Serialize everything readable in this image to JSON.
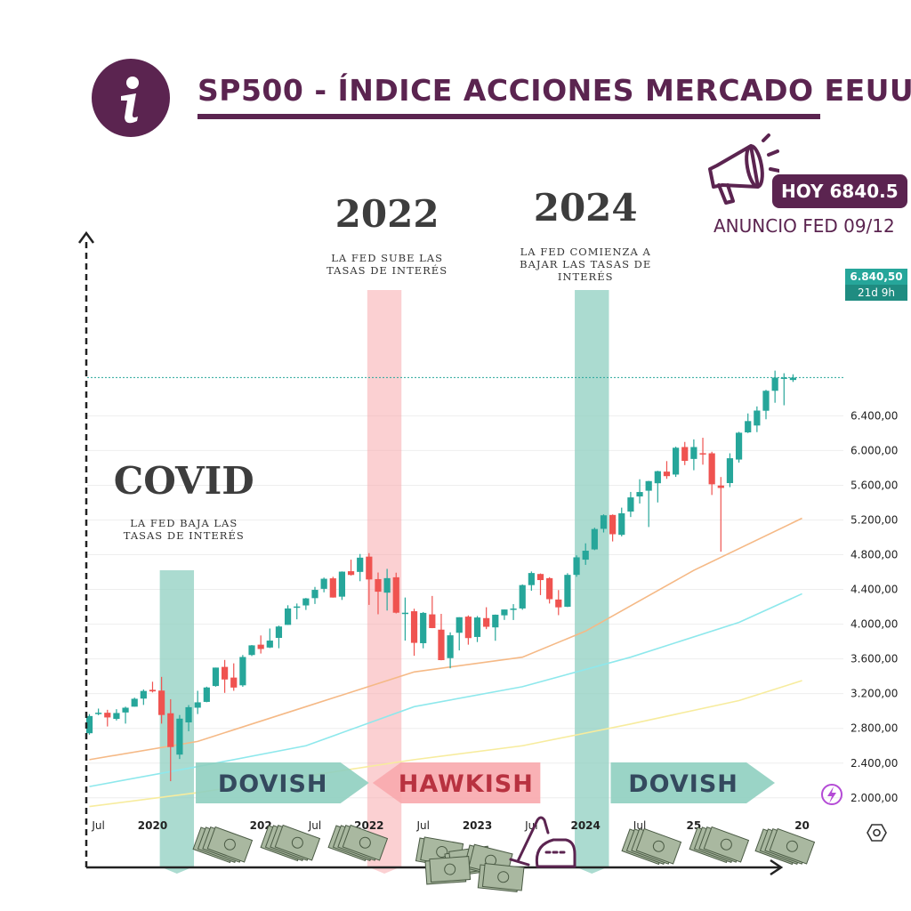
{
  "header": {
    "title": "SP500 - ÍNDICE ACCIONES MERCADO EEUU",
    "today_label": "HOY 6840.5",
    "fed_announcement": "ANUNCIO FED 09/12"
  },
  "price_badge": {
    "price": "6.840,50",
    "countdown": "21d 9h"
  },
  "colors": {
    "brand": "#5b2450",
    "up": "#26a69a",
    "down": "#ef5350",
    "dovish": "#8fcfc0",
    "hawkish": "#f8a9ad"
  },
  "icons": [
    "info-icon",
    "megaphone-icon",
    "lightning-icon",
    "settings-icon",
    "money-stack-icon",
    "vacuum-icon"
  ],
  "chart_data": {
    "type": "candlestick",
    "y_ticks": [
      {
        "value": 2000,
        "label": "2.000,00"
      },
      {
        "value": 2400,
        "label": "2.400,00"
      },
      {
        "value": 2800,
        "label": "2.800,00"
      },
      {
        "value": 3200,
        "label": "3.200,00"
      },
      {
        "value": 3600,
        "label": "3.600,00"
      },
      {
        "value": 4000,
        "label": "4.000,00"
      },
      {
        "value": 4400,
        "label": "4.400,00"
      },
      {
        "value": 4800,
        "label": "4.800,00"
      },
      {
        "value": 5200,
        "label": "5.200,00"
      },
      {
        "value": 5600,
        "label": "5.600,00"
      },
      {
        "value": 6000,
        "label": "6.000,00"
      },
      {
        "value": 6400,
        "label": "6.400,00"
      }
    ],
    "x_ticks": [
      {
        "month": "2019-07",
        "label": "Jul",
        "bold": false
      },
      {
        "month": "2020-01",
        "label": "2020",
        "bold": true
      },
      {
        "month": "2021-01",
        "label": "202",
        "bold": true
      },
      {
        "month": "2021-07",
        "label": "Jul",
        "bold": false
      },
      {
        "month": "2022-01",
        "label": "2022",
        "bold": true
      },
      {
        "month": "2022-07",
        "label": "Jul",
        "bold": false
      },
      {
        "month": "2023-01",
        "label": "2023",
        "bold": true
      },
      {
        "month": "2023-07",
        "label": "Jul",
        "bold": false
      },
      {
        "month": "2024-01",
        "label": "2024",
        "bold": true
      },
      {
        "month": "2024-07",
        "label": "Jul",
        "bold": false
      },
      {
        "month": "2025-01",
        "label": "25",
        "bold": true
      },
      {
        "month": "2026-01",
        "label": "20",
        "bold": true
      }
    ],
    "last_price": 6840.5,
    "candles": [
      {
        "month": "2019-06",
        "o": 2744,
        "h": 2964,
        "l": 2728,
        "c": 2942
      },
      {
        "month": "2019-07",
        "o": 2971,
        "h": 3028,
        "l": 2952,
        "c": 2980
      },
      {
        "month": "2019-08",
        "o": 2980,
        "h": 3014,
        "l": 2822,
        "c": 2926
      },
      {
        "month": "2019-09",
        "o": 2909,
        "h": 3021,
        "l": 2891,
        "c": 2977
      },
      {
        "month": "2019-10",
        "o": 2983,
        "h": 3050,
        "l": 2855,
        "c": 3038
      },
      {
        "month": "2019-11",
        "o": 3050,
        "h": 3154,
        "l": 3050,
        "c": 3141
      },
      {
        "month": "2019-12",
        "o": 3143,
        "h": 3248,
        "l": 3070,
        "c": 3231
      },
      {
        "month": "2020-01",
        "o": 3244,
        "h": 3337,
        "l": 3214,
        "c": 3226
      },
      {
        "month": "2020-02",
        "o": 3235,
        "h": 3393,
        "l": 2855,
        "c": 2954
      },
      {
        "month": "2020-03",
        "o": 2974,
        "h": 3136,
        "l": 2192,
        "c": 2585
      },
      {
        "month": "2020-04",
        "o": 2498,
        "h": 2954,
        "l": 2447,
        "c": 2912
      },
      {
        "month": "2020-05",
        "o": 2869,
        "h": 3068,
        "l": 2767,
        "c": 3044
      },
      {
        "month": "2020-06",
        "o": 3038,
        "h": 3233,
        "l": 2965,
        "c": 3100
      },
      {
        "month": "2020-07",
        "o": 3105,
        "h": 3280,
        "l": 3101,
        "c": 3271
      },
      {
        "month": "2020-08",
        "o": 3288,
        "h": 3500,
        "l": 3280,
        "c": 3500
      },
      {
        "month": "2020-09",
        "o": 3508,
        "h": 3588,
        "l": 3209,
        "c": 3363
      },
      {
        "month": "2020-10",
        "o": 3385,
        "h": 3549,
        "l": 3233,
        "c": 3270
      },
      {
        "month": "2020-11",
        "o": 3296,
        "h": 3645,
        "l": 3279,
        "c": 3622
      },
      {
        "month": "2020-12",
        "o": 3645,
        "h": 3760,
        "l": 3633,
        "c": 3756
      },
      {
        "month": "2021-01",
        "o": 3764,
        "h": 3870,
        "l": 3662,
        "c": 3714
      },
      {
        "month": "2021-02",
        "o": 3731,
        "h": 3950,
        "l": 3725,
        "c": 3811
      },
      {
        "month": "2021-03",
        "o": 3842,
        "h": 3983,
        "l": 3723,
        "c": 3973
      },
      {
        "month": "2021-04",
        "o": 3992,
        "h": 4218,
        "l": 3992,
        "c": 4181
      },
      {
        "month": "2021-05",
        "o": 4191,
        "h": 4238,
        "l": 4056,
        "c": 4204
      },
      {
        "month": "2021-06",
        "o": 4216,
        "h": 4302,
        "l": 4164,
        "c": 4297
      },
      {
        "month": "2021-07",
        "o": 4300,
        "h": 4429,
        "l": 4233,
        "c": 4395
      },
      {
        "month": "2021-08",
        "o": 4407,
        "h": 4537,
        "l": 4367,
        "c": 4523
      },
      {
        "month": "2021-09",
        "o": 4528,
        "h": 4546,
        "l": 4306,
        "c": 4307
      },
      {
        "month": "2021-10",
        "o": 4317,
        "h": 4608,
        "l": 4279,
        "c": 4605
      },
      {
        "month": "2021-11",
        "o": 4610,
        "h": 4743,
        "l": 4560,
        "c": 4567
      },
      {
        "month": "2021-12",
        "o": 4602,
        "h": 4808,
        "l": 4495,
        "c": 4766
      },
      {
        "month": "2022-01",
        "o": 4778,
        "h": 4818,
        "l": 4222,
        "c": 4515
      },
      {
        "month": "2022-02",
        "o": 4519,
        "h": 4595,
        "l": 4114,
        "c": 4374
      },
      {
        "month": "2022-03",
        "o": 4363,
        "h": 4637,
        "l": 4157,
        "c": 4530
      },
      {
        "month": "2022-04",
        "o": 4540,
        "h": 4593,
        "l": 4124,
        "c": 4132
      },
      {
        "month": "2022-05",
        "o": 4130,
        "h": 4307,
        "l": 3811,
        "c": 4132
      },
      {
        "month": "2022-06",
        "o": 4149,
        "h": 4178,
        "l": 3636,
        "c": 3785
      },
      {
        "month": "2022-07",
        "o": 3781,
        "h": 4140,
        "l": 3722,
        "c": 4130
      },
      {
        "month": "2022-08",
        "o": 4113,
        "h": 4325,
        "l": 3954,
        "c": 3955
      },
      {
        "month": "2022-09",
        "o": 3937,
        "h": 4119,
        "l": 3584,
        "c": 3586
      },
      {
        "month": "2022-10",
        "o": 3609,
        "h": 3906,
        "l": 3492,
        "c": 3872
      },
      {
        "month": "2022-11",
        "o": 3901,
        "h": 4080,
        "l": 3698,
        "c": 4080
      },
      {
        "month": "2022-12",
        "o": 4087,
        "h": 4101,
        "l": 3764,
        "c": 3840
      },
      {
        "month": "2023-01",
        "o": 3853,
        "h": 4094,
        "l": 3794,
        "c": 4077
      },
      {
        "month": "2023-02",
        "o": 4070,
        "h": 4195,
        "l": 3943,
        "c": 3970
      },
      {
        "month": "2023-03",
        "o": 3963,
        "h": 4111,
        "l": 3809,
        "c": 4109
      },
      {
        "month": "2023-04",
        "o": 4102,
        "h": 4170,
        "l": 4049,
        "c": 4169
      },
      {
        "month": "2023-05",
        "o": 4166,
        "h": 4231,
        "l": 4048,
        "c": 4180
      },
      {
        "month": "2023-06",
        "o": 4181,
        "h": 4458,
        "l": 4166,
        "c": 4450
      },
      {
        "month": "2023-07",
        "o": 4450,
        "h": 4607,
        "l": 4385,
        "c": 4589
      },
      {
        "month": "2023-08",
        "o": 4578,
        "h": 4584,
        "l": 4335,
        "c": 4508
      },
      {
        "month": "2023-09",
        "o": 4530,
        "h": 4541,
        "l": 4238,
        "c": 4288
      },
      {
        "month": "2023-10",
        "o": 4284,
        "h": 4393,
        "l": 4104,
        "c": 4194
      },
      {
        "month": "2023-11",
        "o": 4201,
        "h": 4587,
        "l": 4197,
        "c": 4568
      },
      {
        "month": "2023-12",
        "o": 4568,
        "h": 4793,
        "l": 4546,
        "c": 4770
      },
      {
        "month": "2024-01",
        "o": 4743,
        "h": 4931,
        "l": 4683,
        "c": 4846
      },
      {
        "month": "2024-02",
        "o": 4861,
        "h": 5111,
        "l": 4853,
        "c": 5096
      },
      {
        "month": "2024-03",
        "o": 5098,
        "h": 5265,
        "l": 5056,
        "c": 5254
      },
      {
        "month": "2024-04",
        "o": 5258,
        "h": 5264,
        "l": 4953,
        "c": 5036
      },
      {
        "month": "2024-05",
        "o": 5029,
        "h": 5342,
        "l": 5011,
        "c": 5277
      },
      {
        "month": "2024-06",
        "o": 5297,
        "h": 5523,
        "l": 5234,
        "c": 5460
      },
      {
        "month": "2024-07",
        "o": 5471,
        "h": 5669,
        "l": 5390,
        "c": 5522
      },
      {
        "month": "2024-08",
        "o": 5537,
        "h": 5651,
        "l": 5119,
        "c": 5648
      },
      {
        "month": "2024-09",
        "o": 5623,
        "h": 5767,
        "l": 5402,
        "c": 5762
      },
      {
        "month": "2024-10",
        "o": 5757,
        "h": 5878,
        "l": 5674,
        "c": 5705
      },
      {
        "month": "2024-11",
        "o": 5723,
        "h": 6044,
        "l": 5696,
        "c": 6032
      },
      {
        "month": "2024-12",
        "o": 6040,
        "h": 6099,
        "l": 5832,
        "c": 5881
      },
      {
        "month": "2025-01",
        "o": 5903,
        "h": 6128,
        "l": 5773,
        "c": 6040
      },
      {
        "month": "2025-02",
        "o": 5969,
        "h": 6147,
        "l": 5837,
        "c": 5954
      },
      {
        "month": "2025-03",
        "o": 5968,
        "h": 5986,
        "l": 5488,
        "c": 5611
      },
      {
        "month": "2025-04",
        "o": 5597,
        "h": 5695,
        "l": 4835,
        "c": 5569
      },
      {
        "month": "2025-05",
        "o": 5625,
        "h": 5968,
        "l": 5578,
        "c": 5911
      },
      {
        "month": "2025-06",
        "o": 5896,
        "h": 6215,
        "l": 5861,
        "c": 6205
      },
      {
        "month": "2025-07",
        "o": 6209,
        "h": 6427,
        "l": 6201,
        "c": 6339
      },
      {
        "month": "2025-08",
        "o": 6288,
        "h": 6508,
        "l": 6212,
        "c": 6460
      },
      {
        "month": "2025-09",
        "o": 6458,
        "h": 6699,
        "l": 6360,
        "c": 6688
      },
      {
        "month": "2025-10",
        "o": 6688,
        "h": 6920,
        "l": 6550,
        "c": 6840
      },
      {
        "month": "2025-11",
        "o": 6840,
        "h": 6890,
        "l": 6521,
        "c": 6840
      },
      {
        "month": "2025-12",
        "o": 6812,
        "h": 6878,
        "l": 6790,
        "c": 6840
      }
    ],
    "moving_averages": [
      {
        "color": "#f5b986",
        "points": [
          [
            "2019-06",
            2440
          ],
          [
            "2020-06",
            2650
          ],
          [
            "2021-06",
            3050
          ],
          [
            "2022-06",
            3450
          ],
          [
            "2023-06",
            3620
          ],
          [
            "2024-01",
            3920
          ],
          [
            "2025-01",
            4620
          ],
          [
            "2026-01",
            5220
          ]
        ]
      },
      {
        "color": "#8ee8ec",
        "points": [
          [
            "2019-06",
            2130
          ],
          [
            "2020-06",
            2360
          ],
          [
            "2021-06",
            2600
          ],
          [
            "2022-06",
            3050
          ],
          [
            "2023-06",
            3280
          ],
          [
            "2024-06",
            3620
          ],
          [
            "2025-06",
            4020
          ],
          [
            "2026-01",
            4350
          ]
        ]
      },
      {
        "color": "#f7ec9e",
        "points": [
          [
            "2019-06",
            1900
          ],
          [
            "2020-06",
            2060
          ],
          [
            "2021-06",
            2250
          ],
          [
            "2022-06",
            2440
          ],
          [
            "2023-06",
            2600
          ],
          [
            "2024-06",
            2850
          ],
          [
            "2025-06",
            3120
          ],
          [
            "2026-01",
            3350
          ]
        ]
      }
    ],
    "bands": [
      {
        "name": "covid-band",
        "start": "2020-02",
        "end": "2020-05",
        "kind": "dovish"
      },
      {
        "name": "hike-2022-band",
        "start": "2022-01",
        "end": "2022-04",
        "kind": "hawkish"
      },
      {
        "name": "cut-2024-band",
        "start": "2023-12",
        "end": "2024-03",
        "kind": "dovish"
      }
    ],
    "annotations": [
      {
        "name": "covid-title",
        "text": "COVID",
        "style": "big",
        "at": "2020-03"
      },
      {
        "name": "covid-note",
        "lines": [
          "LA FED BAJA LAS",
          "TASAS DE INTERÉS"
        ],
        "at": "2020-03"
      },
      {
        "name": "year-2022-title",
        "text": "2022",
        "style": "big",
        "at": "2022-03"
      },
      {
        "name": "hike-note",
        "lines": [
          "LA FED SUBE LAS",
          "TASAS DE INTERÉS"
        ],
        "at": "2022-03"
      },
      {
        "name": "year-2024-title",
        "text": "2024",
        "style": "big",
        "at": "2024-01"
      },
      {
        "name": "cut-note",
        "lines": [
          "LA FED COMIENZA A",
          "BAJAR LAS TASAS DE",
          "INTERÉS"
        ],
        "at": "2024-01"
      }
    ],
    "regimes": [
      {
        "label": "DOVISH",
        "start": "2020-05",
        "end": "2021-12",
        "direction": "right",
        "kind": "dovish"
      },
      {
        "label": "HAWKISH",
        "start": "2022-01",
        "end": "2023-07",
        "direction": "left",
        "kind": "hawkish"
      },
      {
        "label": "DOVISH",
        "start": "2024-03",
        "end": "2025-09",
        "direction": "right",
        "kind": "dovish"
      }
    ]
  }
}
